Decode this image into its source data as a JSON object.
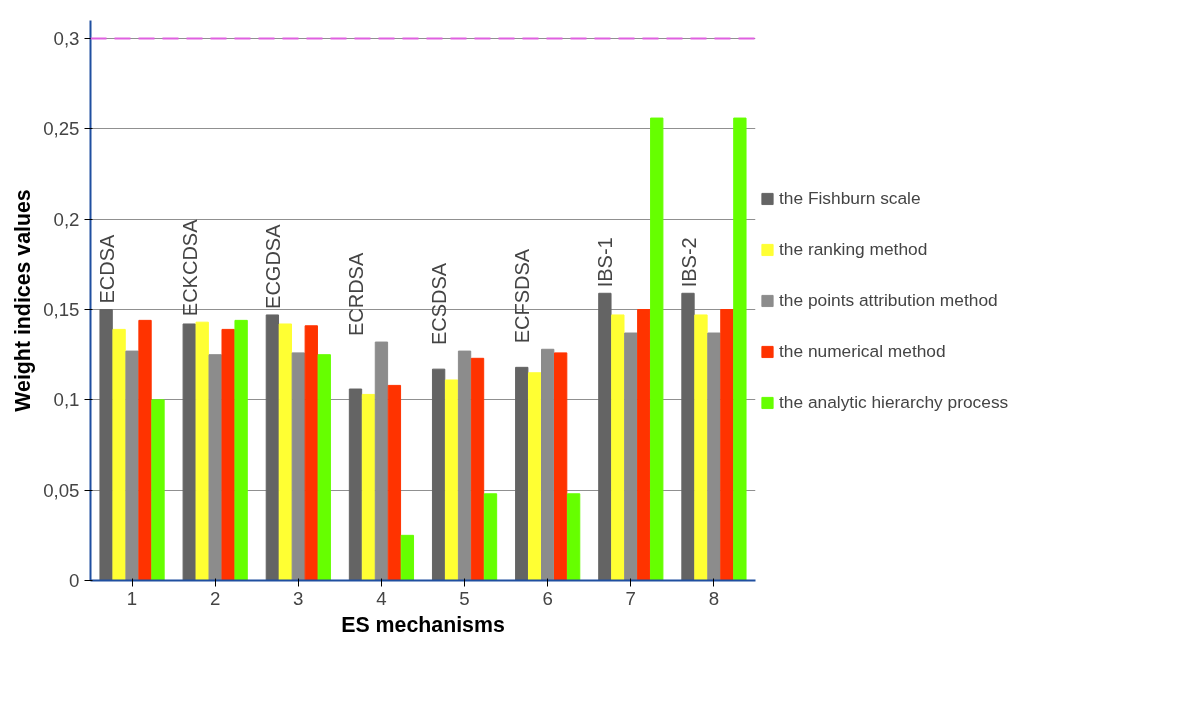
{
  "chart_data": {
    "type": "bar",
    "xlabel": "ES mechanisms",
    "ylabel": "Weight indices values",
    "categories": [
      "1",
      "2",
      "3",
      "4",
      "5",
      "6",
      "7",
      "8"
    ],
    "series": [
      {
        "name": "the Fishburn scale",
        "color": "#646464",
        "values": [
          0.15,
          0.142,
          0.147,
          0.106,
          0.117,
          0.118,
          0.159,
          0.159
        ]
      },
      {
        "name": "the ranking method",
        "color": "#ffff33",
        "values": [
          0.139,
          0.143,
          0.142,
          0.103,
          0.111,
          0.115,
          0.147,
          0.147
        ]
      },
      {
        "name": "the points attribution method",
        "color": "#8c8c8c",
        "values": [
          0.127,
          0.125,
          0.126,
          0.132,
          0.127,
          0.128,
          0.137,
          0.137
        ]
      },
      {
        "name": "the numerical method",
        "color": "#ff3300",
        "values": [
          0.144,
          0.139,
          0.141,
          0.108,
          0.123,
          0.126,
          0.15,
          0.15
        ]
      },
      {
        "name": "the analytic hierarchy process",
        "color": "#66ff00",
        "values": [
          0.1,
          0.144,
          0.125,
          0.025,
          0.048,
          0.048,
          0.256,
          0.256
        ]
      }
    ],
    "ylim": [
      0,
      0.31
    ],
    "yticks": [
      0,
      {
        "value": 0.05,
        "label": "0,05"
      },
      {
        "value": 0.1,
        "label": "0,1"
      },
      {
        "value": 0.15,
        "label": "0,15"
      },
      {
        "value": 0.2,
        "label": "0,2"
      },
      {
        "value": 0.25,
        "label": "0,25"
      },
      {
        "value": 0.3,
        "label": "0,3"
      }
    ],
    "grid": "y",
    "legend": "right",
    "ref_lines": [
      {
        "axis": "y",
        "value": 0.3,
        "label": null,
        "color": "#e060e0",
        "line_style": "dashed"
      }
    ],
    "annotations": [
      "ECDSA",
      "ECKCDSA",
      "ECGDSA",
      "ECRDSA",
      "ECSDSA",
      "ECFSDSA",
      "IBS-1",
      "IBS-2"
    ]
  }
}
